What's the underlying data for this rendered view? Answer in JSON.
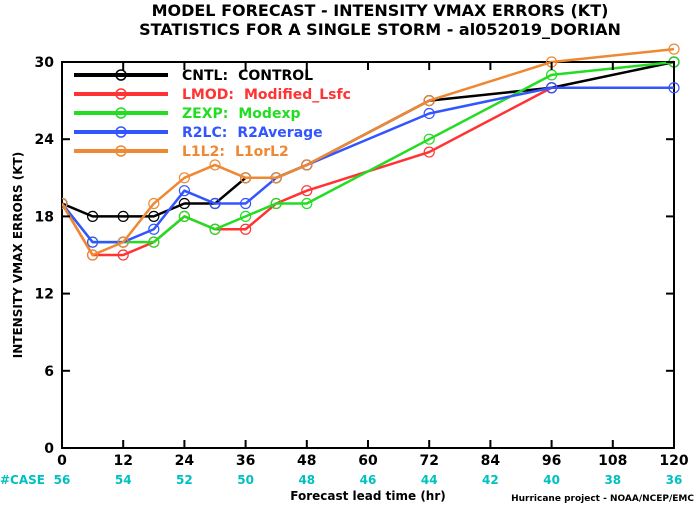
{
  "chart_data": {
    "type": "line",
    "title": "MODEL FORECAST - INTENSITY VMAX ERRORS (KT)",
    "subtitle": "STATISTICS FOR A SINGLE STORM - al052019_DORIAN",
    "xlabel": "Forecast lead time (hr)",
    "ylabel": "INTENSITY VMAX ERRORS (KT)",
    "xlim": [
      0,
      120
    ],
    "ylim": [
      0,
      30
    ],
    "xticks": [
      0,
      12,
      24,
      36,
      48,
      60,
      72,
      84,
      96,
      108,
      120
    ],
    "yticks": [
      0,
      6,
      12,
      18,
      24,
      30
    ],
    "grid": false,
    "legend_position": "top-left",
    "case_label": "#CASE",
    "case_x": [
      0,
      12,
      24,
      36,
      48,
      60,
      72,
      84,
      96,
      108,
      120
    ],
    "case_counts": [
      "56",
      "54",
      "52",
      "50",
      "48",
      "46",
      "44",
      "42",
      "40",
      "38",
      "36"
    ],
    "case_color": "#00c0c0",
    "credit": "Hurricane project - NOAA/NCEP/EMC",
    "series": [
      {
        "code": "CNTL:",
        "name": "CONTROL",
        "color": "#000000",
        "x": [
          0,
          6,
          12,
          18,
          24,
          30,
          36,
          42,
          48,
          72,
          96,
          120
        ],
        "y": [
          19,
          18,
          18,
          18,
          19,
          19,
          21,
          21,
          22,
          27,
          28,
          30
        ]
      },
      {
        "code": "LMOD:",
        "name": "Modified_Lsfc",
        "color": "#ff3333",
        "x": [
          0,
          6,
          12,
          18,
          24,
          30,
          36,
          42,
          48,
          72,
          96
        ],
        "y": [
          19,
          15,
          15,
          16,
          18,
          17,
          17,
          19,
          20,
          23,
          28
        ]
      },
      {
        "code": "ZEXP:",
        "name": "Modexp",
        "color": "#22dd22",
        "x": [
          0,
          6,
          12,
          18,
          24,
          30,
          36,
          42,
          48,
          72,
          96,
          120
        ],
        "y": [
          19,
          16,
          16,
          16,
          18,
          17,
          18,
          19,
          19,
          24,
          29,
          30
        ]
      },
      {
        "code": "R2LC:",
        "name": "R2Average",
        "color": "#3355ff",
        "x": [
          0,
          6,
          12,
          18,
          24,
          30,
          36,
          42,
          48,
          72,
          96,
          120
        ],
        "y": [
          19,
          16,
          16,
          17,
          20,
          19,
          19,
          21,
          22,
          26,
          28,
          28
        ]
      },
      {
        "code": "L1L2:",
        "name": "L1orL2",
        "color": "#ee8833",
        "x": [
          0,
          6,
          12,
          18,
          24,
          30,
          36,
          42,
          48,
          72,
          96,
          120
        ],
        "y": [
          19,
          15,
          16,
          19,
          21,
          22,
          21,
          21,
          22,
          27,
          30,
          31
        ]
      }
    ]
  }
}
